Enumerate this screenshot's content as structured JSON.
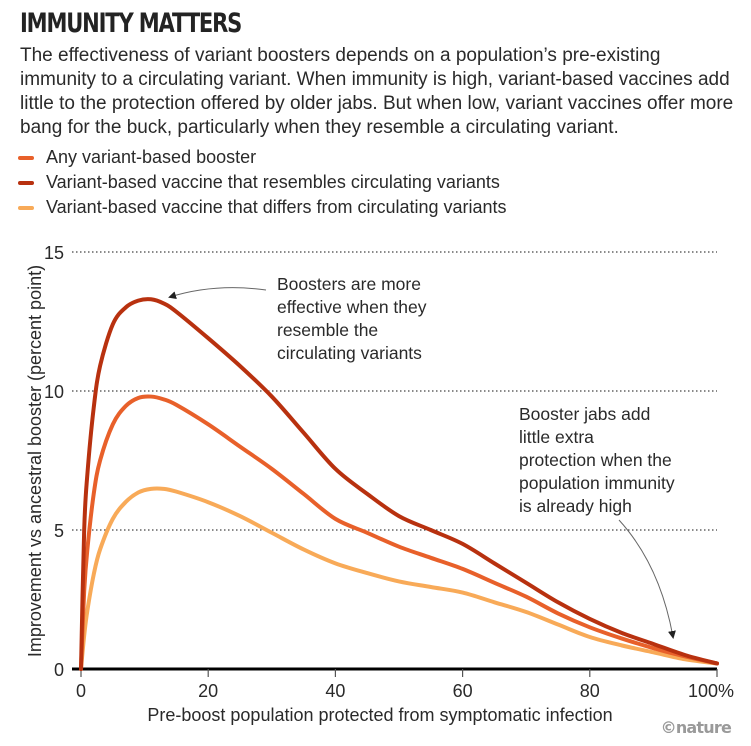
{
  "header": {
    "title": "IMMUNITY MATTERS",
    "subtitle": "The effectiveness of variant boosters depends on a population’s pre-existing immunity to a circulating variant. When immunity is high, variant-based vaccines add little to the protection offered by older jabs. But when low, variant vaccines offer more bang for the buck, particularly when they resemble a circulating variant."
  },
  "credit": "©nature",
  "colors": {
    "any": "#e8602a",
    "resembles": "#b8310f",
    "differs": "#f8aa58",
    "text": "#2a2a2a",
    "grid": "#444444",
    "annotation_arrow": "#666666"
  },
  "chart_data": {
    "type": "line",
    "title": "IMMUNITY MATTERS",
    "xlabel": "Pre-boost population protected from symptomatic infection",
    "ylabel": "Improvement vs ancestral booster (percent point)",
    "xlim": [
      0,
      100
    ],
    "ylim": [
      0,
      15
    ],
    "x_ticks": [
      0,
      20,
      40,
      60,
      80,
      100
    ],
    "x_tick_labels": [
      "0",
      "20",
      "40",
      "60",
      "80",
      "100%"
    ],
    "y_ticks": [
      0,
      5,
      10,
      15
    ],
    "y_tick_labels": [
      "0",
      "5",
      "10",
      "15"
    ],
    "grid": "horizontal-dotted",
    "legend_placement": "top-left",
    "x": [
      0,
      0.5,
      1,
      2,
      3,
      5,
      7,
      9,
      11,
      13,
      15,
      20,
      25,
      30,
      35,
      40,
      45,
      50,
      55,
      60,
      65,
      70,
      75,
      80,
      85,
      90,
      95,
      100
    ],
    "series": [
      {
        "key": "resembles",
        "name": "Variant-based vaccine that resembles circulating variants",
        "values": [
          0,
          5.0,
          7.0,
          9.4,
          10.9,
          12.4,
          13.0,
          13.25,
          13.3,
          13.15,
          12.85,
          11.9,
          10.9,
          9.8,
          8.5,
          7.2,
          6.3,
          5.5,
          5.0,
          4.5,
          3.8,
          3.1,
          2.4,
          1.8,
          1.3,
          0.9,
          0.5,
          0.2
        ]
      },
      {
        "key": "any",
        "name": "Any variant-based booster",
        "values": [
          0,
          2.8,
          4.3,
          6.3,
          7.5,
          8.8,
          9.45,
          9.75,
          9.8,
          9.7,
          9.5,
          8.8,
          8.0,
          7.2,
          6.3,
          5.4,
          4.9,
          4.4,
          4.0,
          3.6,
          3.1,
          2.6,
          2.0,
          1.5,
          1.1,
          0.75,
          0.45,
          0.2
        ]
      },
      {
        "key": "differs",
        "name": "Variant-based vaccine that differs from circulating variants",
        "values": [
          0,
          1.2,
          2.1,
          3.4,
          4.3,
          5.4,
          6.0,
          6.35,
          6.48,
          6.48,
          6.38,
          6.0,
          5.5,
          4.9,
          4.3,
          3.8,
          3.45,
          3.15,
          2.95,
          2.75,
          2.4,
          2.05,
          1.6,
          1.15,
          0.85,
          0.6,
          0.35,
          0.2
        ]
      }
    ],
    "annotations": [
      {
        "text": [
          "Boosters are more",
          "effective when they",
          "resemble the",
          "circulating variants"
        ],
        "points_to": {
          "x": 14,
          "y": 13.2
        }
      },
      {
        "text": [
          "Booster jabs add",
          "little extra",
          "protection when the",
          "population immunity",
          "is already high"
        ],
        "points_to": {
          "x": 94,
          "y": 1.1
        }
      }
    ]
  },
  "legend": [
    {
      "key": "any",
      "label": "Any variant-based booster"
    },
    {
      "key": "resembles",
      "label": "Variant-based vaccine that resembles circulating variants"
    },
    {
      "key": "differs",
      "label": "Variant-based vaccine that differs from circulating variants"
    }
  ]
}
